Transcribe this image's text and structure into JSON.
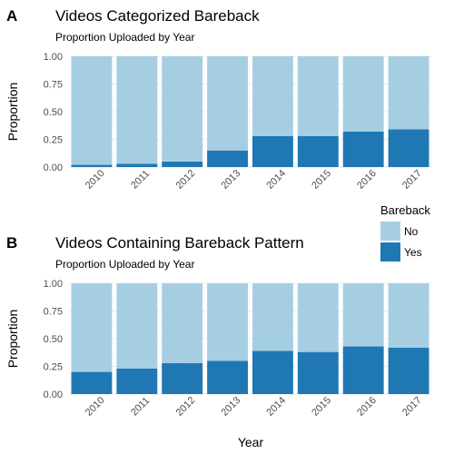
{
  "figure": {
    "xlabel": "Year",
    "legend": {
      "title": "Bareback",
      "placement": "right",
      "entries": [
        {
          "label": "No",
          "color": "#a6cee3"
        },
        {
          "label": "Yes",
          "color": "#1f78b4"
        }
      ]
    }
  },
  "chart_data": [
    {
      "type": "bar",
      "stacked": true,
      "panel": "A",
      "title": "Videos Categorized Bareback",
      "subtitle": "Proportion Uploaded by Year",
      "ylabel": "Proportion",
      "ylim": [
        0,
        1
      ],
      "yticks": [
        "0.00",
        "0.25",
        "0.50",
        "0.75",
        "1.00"
      ],
      "grid": true,
      "categories": [
        "2010",
        "2011",
        "2012",
        "2013",
        "2014",
        "2015",
        "2016",
        "2017"
      ],
      "series": [
        {
          "name": "Yes",
          "color": "#1f78b4",
          "values": [
            0.02,
            0.03,
            0.05,
            0.15,
            0.28,
            0.28,
            0.32,
            0.34
          ]
        },
        {
          "name": "No",
          "color": "#a6cee3",
          "values": [
            0.98,
            0.97,
            0.95,
            0.85,
            0.72,
            0.72,
            0.68,
            0.66
          ]
        }
      ]
    },
    {
      "type": "bar",
      "stacked": true,
      "panel": "B",
      "title": "Videos Containing Bareback Pattern",
      "subtitle": "Proportion Uploaded by Year",
      "ylabel": "Proportion",
      "ylim": [
        0,
        1
      ],
      "yticks": [
        "0.00",
        "0.25",
        "0.50",
        "0.75",
        "1.00"
      ],
      "grid": true,
      "categories": [
        "2010",
        "2011",
        "2012",
        "2013",
        "2014",
        "2015",
        "2016",
        "2017"
      ],
      "series": [
        {
          "name": "Yes",
          "color": "#1f78b4",
          "values": [
            0.2,
            0.23,
            0.28,
            0.3,
            0.39,
            0.38,
            0.43,
            0.42
          ]
        },
        {
          "name": "No",
          "color": "#a6cee3",
          "values": [
            0.8,
            0.77,
            0.72,
            0.7,
            0.61,
            0.62,
            0.57,
            0.58
          ]
        }
      ]
    }
  ]
}
